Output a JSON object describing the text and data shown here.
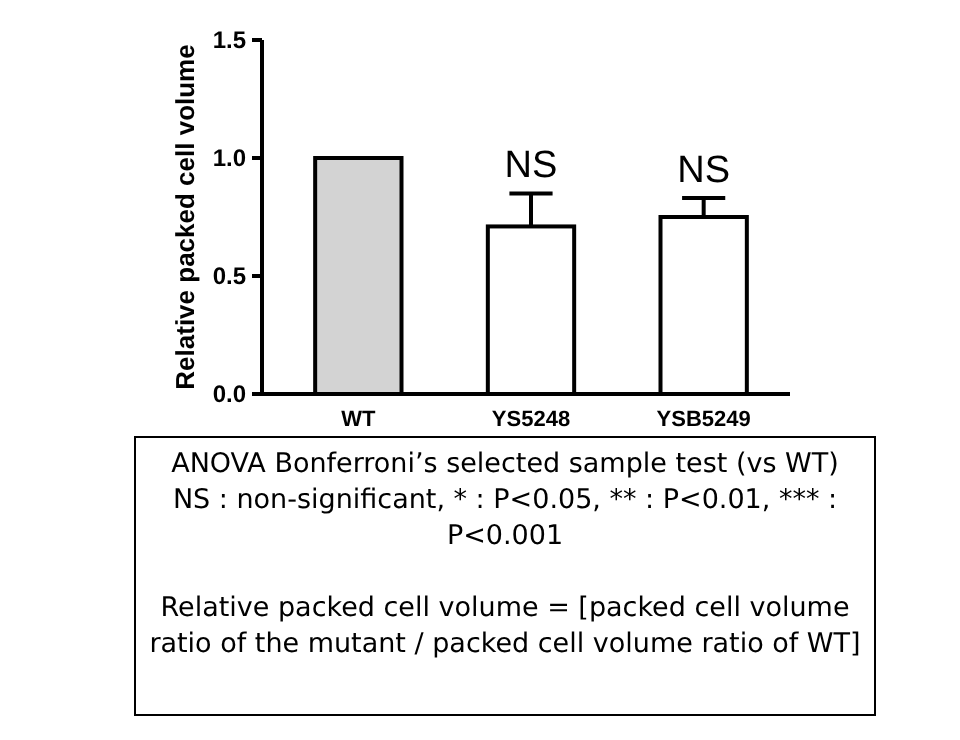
{
  "chart_data": {
    "type": "bar",
    "ylabel": "Relative packed cell volume",
    "categories": [
      "WT",
      "YS5248",
      "YSB5249"
    ],
    "values": [
      1.0,
      0.71,
      0.75
    ],
    "colors": [
      "#d3d3d3",
      "#ffffff",
      "#ffffff"
    ],
    "errors": [
      null,
      [
        0.71,
        0.85
      ],
      [
        0.75,
        0.83
      ]
    ],
    "ylim": [
      0,
      1.5
    ],
    "yticks": [
      {
        "value": 0,
        "label": "0.0"
      },
      0.5,
      {
        "value": 1,
        "label": "1.0"
      },
      1.5
    ],
    "grid": false,
    "annotations": [
      {
        "text": "NS",
        "x": "YS5248",
        "y": 0.85
      },
      {
        "text": "NS",
        "x": "YSB5249",
        "y": 0.83
      },
      "ANOVA Bonferroni’s selected sample test (vs WT)",
      "NS : non-significant, * : P<0.05, ** : P<0.01, *** : P<0.001",
      "Relative packed cell volume = [packed cell volume ratio of the mutant / packed cell volume ratio of WT]"
    ]
  }
}
